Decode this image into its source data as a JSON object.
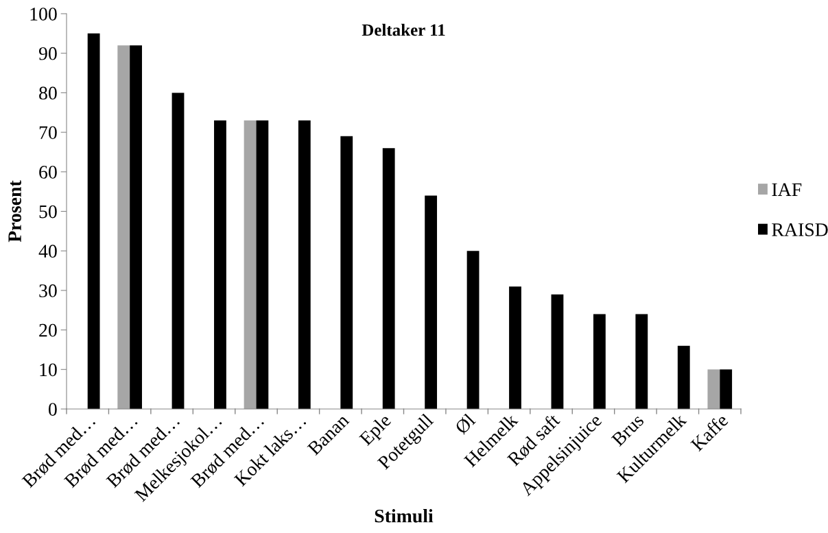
{
  "chart_data": {
    "type": "bar",
    "title": "Deltaker 11",
    "xlabel": "Stimuli",
    "ylabel": "Prosent",
    "categories": [
      "Brød med…",
      "Brød med…",
      "Brød med…",
      "Melkesjokol…",
      "Brød med…",
      "Kokt laks…",
      "Banan",
      "Eple",
      "Potetgull",
      "Øl",
      "Helmelk",
      "Rød saft",
      "Appelsinjuice",
      "Brus",
      "Kulturmelk",
      "Kaffe"
    ],
    "series": [
      {
        "name": "IAF",
        "color": "#a6a6a6",
        "values": [
          null,
          92,
          null,
          null,
          73,
          null,
          null,
          null,
          null,
          null,
          null,
          null,
          null,
          null,
          null,
          10
        ]
      },
      {
        "name": "RAISD",
        "color": "#000000",
        "values": [
          95,
          92,
          80,
          73,
          73,
          73,
          69,
          66,
          54,
          40,
          31,
          29,
          24,
          24,
          16,
          10
        ]
      }
    ],
    "ylim": [
      0,
      100
    ],
    "yticks": [
      0,
      10,
      20,
      30,
      40,
      50,
      60,
      70,
      80,
      90,
      100
    ],
    "grid": false,
    "legend": "right"
  }
}
